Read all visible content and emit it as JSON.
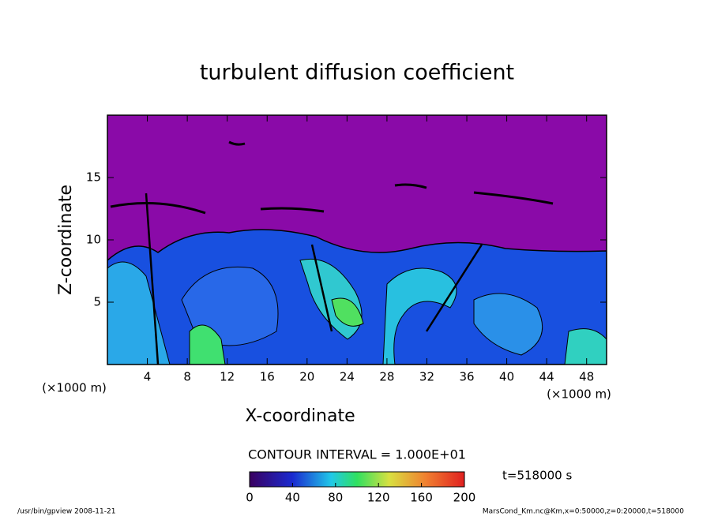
{
  "chart_data": {
    "type": "contour",
    "title": "turbulent diffusion coefficient",
    "x_label": "X-coordinate",
    "y_label": "Z-coordinate",
    "x_unit": "(×1000 m)",
    "y_unit": "(×1000 m)",
    "xlim": [
      0,
      50
    ],
    "xticks": [
      4,
      8,
      12,
      16,
      20,
      24,
      28,
      32,
      36,
      40,
      44,
      48
    ],
    "ylim": [
      0,
      20
    ],
    "yticks": [
      5,
      10,
      15
    ],
    "contour_interval": "CONTOUR INTERVAL = 1.000E+01",
    "time_label": "t=518000 s",
    "colorbar_lim": [
      0,
      200
    ],
    "colorbar_ticks": [
      0,
      40,
      80,
      120,
      160,
      200
    ],
    "footer_left": "/usr/bin/gpview   2008-11-21",
    "footer_right": "MarsCond_Km.nc@Km,x=0:50000,z=0:20000,t=518000"
  }
}
